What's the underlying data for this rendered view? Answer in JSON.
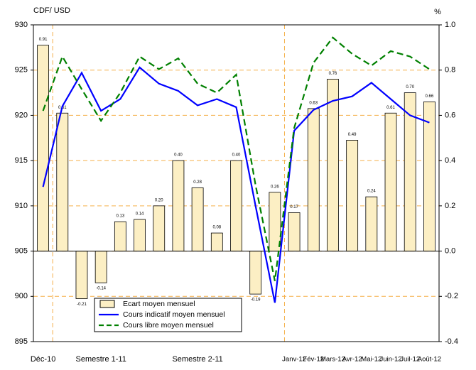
{
  "chart_data": {
    "type": "combo",
    "y_label": "CDF/ USD",
    "y2_label": "%",
    "categories": [
      "Déc-10",
      null,
      null,
      "Semestre 1-11",
      null,
      null,
      null,
      null,
      "Semestre 2-11",
      null,
      null,
      null,
      null,
      "Janv-12",
      "Fév-12",
      "Mars-12",
      "Avr-12",
      "Mai-12",
      "Juin-12",
      "Juil-12",
      "Août-12"
    ],
    "ylim": [
      895,
      930
    ],
    "yticks": [
      895,
      900,
      905,
      910,
      915,
      920,
      925,
      930
    ],
    "y2lim": [
      -0.4,
      1.0
    ],
    "y2ticks": [
      {
        "value": -0.4,
        "label": "-0.4"
      },
      {
        "value": -0.2,
        "label": "-0.2"
      },
      {
        "value": 0,
        "label": "0.0"
      },
      {
        "value": 0.2,
        "label": "0.2"
      },
      {
        "value": 0.4,
        "label": "0.4"
      },
      {
        "value": 0.6,
        "label": "0.6"
      },
      {
        "value": 0.8,
        "label": "0.8"
      },
      {
        "value": 1.0,
        "label": "1.0"
      }
    ],
    "grid": true,
    "legend": "bottom-left",
    "series": [
      {
        "name": "Ecart moyen mensuel",
        "type": "bar",
        "axis": "y2",
        "color": "#fcefc4",
        "values": [
          0.91,
          0.61,
          -0.21,
          -0.14,
          0.13,
          0.14,
          0.2,
          0.4,
          0.28,
          0.08,
          0.4,
          -0.19,
          0.26,
          0.17,
          0.63,
          0.76,
          0.49,
          0.24,
          0.61,
          0.7,
          0.66
        ],
        "value_labels": [
          "0.91",
          "0.61",
          "-0.21",
          "-0.14",
          "0.13",
          "0.14",
          "0.20",
          "0.40",
          "0.28",
          "0.08",
          "0.40",
          "-0.19",
          "0.26",
          "0.17",
          "0.63",
          "0.76",
          "0.49",
          "0.24",
          "0.61",
          "0.70",
          "0.66"
        ]
      },
      {
        "name": "Cours indicatif moyen mensuel",
        "type": "line",
        "color": "#0000ff",
        "values": [
          912.1,
          921.0,
          924.7,
          920.5,
          921.8,
          925.3,
          923.5,
          922.7,
          921.1,
          921.8,
          920.9,
          910.0,
          899.3,
          918.3,
          920.6,
          921.6,
          922.1,
          923.6,
          921.8,
          920.0,
          919.2
        ]
      },
      {
        "name": "Cours libre moyen mensuel",
        "type": "line",
        "color": "#008000",
        "dashed": true,
        "values": [
          920.5,
          926.5,
          922.9,
          919.4,
          922.5,
          926.5,
          925.1,
          926.3,
          923.5,
          922.5,
          924.5,
          912.3,
          901.7,
          918.6,
          925.8,
          928.6,
          926.8,
          925.5,
          927.1,
          926.5,
          925.1
        ]
      }
    ]
  }
}
